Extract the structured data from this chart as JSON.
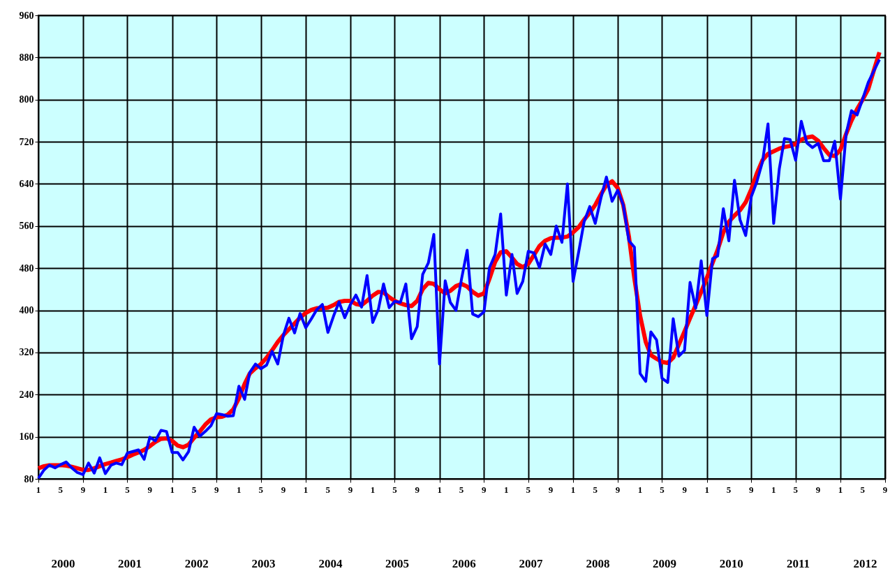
{
  "chart_data": {
    "type": "line",
    "marker": "none",
    "line_style": "solid",
    "grid": true,
    "x": [
      "2000-01",
      "2000-02",
      "2000-03",
      "2000-04",
      "2000-05",
      "2000-06",
      "2000-07",
      "2000-08",
      "2000-09",
      "2000-10",
      "2000-11",
      "2000-12",
      "2001-01",
      "2001-02",
      "2001-03",
      "2001-04",
      "2001-05",
      "2001-06",
      "2001-07",
      "2001-08",
      "2001-09",
      "2001-10",
      "2001-11",
      "2001-12",
      "2002-01",
      "2002-02",
      "2002-03",
      "2002-04",
      "2002-05",
      "2002-06",
      "2002-07",
      "2002-08",
      "2002-09",
      "2002-10",
      "2002-11",
      "2002-12",
      "2003-01",
      "2003-02",
      "2003-03",
      "2003-04",
      "2003-05",
      "2003-06",
      "2003-07",
      "2003-08",
      "2003-09",
      "2003-10",
      "2003-11",
      "2003-12",
      "2004-01",
      "2004-02",
      "2004-03",
      "2004-04",
      "2004-05",
      "2004-06",
      "2004-07",
      "2004-08",
      "2004-09",
      "2004-10",
      "2004-11",
      "2004-12",
      "2005-01",
      "2005-02",
      "2005-03",
      "2005-04",
      "2005-05",
      "2005-06",
      "2005-07",
      "2005-08",
      "2005-09",
      "2005-10",
      "2005-11",
      "2005-12",
      "2006-01",
      "2006-02",
      "2006-03",
      "2006-04",
      "2006-05",
      "2006-06",
      "2006-07",
      "2006-08",
      "2006-09",
      "2006-10",
      "2006-11",
      "2006-12",
      "2007-01",
      "2007-02",
      "2007-03",
      "2007-04",
      "2007-05",
      "2007-06",
      "2007-07",
      "2007-08",
      "2007-09",
      "2007-10",
      "2007-11",
      "2007-12",
      "2008-01",
      "2008-02",
      "2008-03",
      "2008-04",
      "2008-05",
      "2008-06",
      "2008-07",
      "2008-08",
      "2008-09",
      "2008-10",
      "2008-11",
      "2008-12",
      "2009-01",
      "2009-02",
      "2009-03",
      "2009-04",
      "2009-05",
      "2009-06",
      "2009-07",
      "2009-08",
      "2009-09",
      "2009-10",
      "2009-11",
      "2009-12",
      "2010-01",
      "2010-02",
      "2010-03",
      "2010-04",
      "2010-05",
      "2010-06",
      "2010-07",
      "2010-08",
      "2010-09",
      "2010-10",
      "2010-11",
      "2010-12",
      "2011-01",
      "2011-02",
      "2011-03",
      "2011-04",
      "2011-05",
      "2011-06",
      "2011-07",
      "2011-08",
      "2011-09",
      "2011-10",
      "2011-11",
      "2011-12",
      "2012-01",
      "2012-02",
      "2012-03",
      "2012-04",
      "2012-05",
      "2012-06",
      "2012-07",
      "2012-08"
    ],
    "series": [
      {
        "color": "#ff0000",
        "values": [
          100,
          104,
          106,
          106,
          106,
          105,
          103,
          100,
          97,
          97,
          100,
          104,
          108,
          111,
          114,
          117,
          121,
          126,
          130,
          135,
          142,
          150,
          156,
          157,
          152,
          143,
          140,
          145,
          158,
          170,
          183,
          193,
          197,
          198,
          202,
          212,
          233,
          260,
          280,
          290,
          298,
          310,
          324,
          340,
          353,
          364,
          375,
          386,
          395,
          401,
          404,
          404,
          405,
          410,
          416,
          418,
          418,
          412,
          410,
          418,
          428,
          435,
          434,
          425,
          418,
          413,
          410,
          408,
          418,
          440,
          452,
          450,
          440,
          432,
          437,
          446,
          450,
          445,
          435,
          428,
          432,
          460,
          492,
          510,
          512,
          500,
          488,
          482,
          488,
          505,
          522,
          532,
          537,
          538,
          538,
          540,
          548,
          558,
          572,
          585,
          600,
          620,
          638,
          645,
          632,
          600,
          540,
          460,
          390,
          340,
          315,
          308,
          302,
          300,
          310,
          335,
          360,
          385,
          410,
          435,
          462,
          490,
          515,
          548,
          568,
          580,
          590,
          605,
          630,
          660,
          685,
          697,
          702,
          707,
          710,
          712,
          716,
          724,
          728,
          730,
          722,
          708,
          695,
          693,
          705,
          735,
          760,
          782,
          800,
          820,
          855,
          890
        ]
      },
      {
        "color": "#0000ff",
        "values": [
          81,
          97,
          106,
          101,
          107,
          112,
          101,
          92,
          88,
          110,
          91,
          120,
          90,
          106,
          110,
          107,
          129,
          132,
          135,
          117,
          159,
          152,
          172,
          170,
          130,
          130,
          116,
          132,
          178,
          161,
          170,
          181,
          204,
          202,
          199,
          200,
          256,
          231,
          282,
          298,
          289,
          296,
          322,
          298,
          353,
          385,
          357,
          394,
          367,
          384,
          401,
          411,
          358,
          389,
          416,
          386,
          411,
          429,
          406,
          466,
          377,
          402,
          450,
          405,
          417,
          415,
          450,
          346,
          369,
          468,
          490,
          544,
          298,
          456,
          415,
          400,
          459,
          514,
          393,
          388,
          397,
          481,
          506,
          583,
          429,
          506,
          432,
          455,
          512,
          509,
          481,
          526,
          506,
          560,
          529,
          640,
          455,
          512,
          568,
          597,
          565,
          613,
          653,
          607,
          628,
          600,
          532,
          520,
          280,
          265,
          359,
          344,
          271,
          263,
          384,
          313,
          324,
          453,
          404,
          494,
          390,
          498,
          503,
          593,
          532,
          647,
          572,
          542,
          616,
          644,
          682,
          754,
          565,
          669,
          726,
          724,
          685,
          759,
          718,
          709,
          717,
          684,
          684,
          721,
          611,
          735,
          779,
          771,
          801,
          833,
          854,
          876
        ]
      }
    ],
    "xlim": [
      "2000-01",
      "2012-09"
    ],
    "xticks": [
      {
        "value": "2000-01",
        "label": "1"
      },
      {
        "value": "2000-05",
        "label": "5"
      },
      {
        "value": "2000-09",
        "label": "9"
      },
      {
        "value": "2001-01",
        "label": "1"
      },
      {
        "value": "2001-05",
        "label": "5"
      },
      {
        "value": "2001-09",
        "label": "9"
      },
      {
        "value": "2002-01",
        "label": "1"
      },
      {
        "value": "2002-05",
        "label": "5"
      },
      {
        "value": "2002-09",
        "label": "9"
      },
      {
        "value": "2003-01",
        "label": "1"
      },
      {
        "value": "2003-05",
        "label": "5"
      },
      {
        "value": "2003-09",
        "label": "9"
      },
      {
        "value": "2004-01",
        "label": "1"
      },
      {
        "value": "2004-05",
        "label": "5"
      },
      {
        "value": "2004-09",
        "label": "9"
      },
      {
        "value": "2005-01",
        "label": "1"
      },
      {
        "value": "2005-05",
        "label": "5"
      },
      {
        "value": "2005-09",
        "label": "9"
      },
      {
        "value": "2006-01",
        "label": "1"
      },
      {
        "value": "2006-05",
        "label": "5"
      },
      {
        "value": "2006-09",
        "label": "9"
      },
      {
        "value": "2007-01",
        "label": "1"
      },
      {
        "value": "2007-05",
        "label": "5"
      },
      {
        "value": "2007-09",
        "label": "9"
      },
      {
        "value": "2008-01",
        "label": "1"
      },
      {
        "value": "2008-05",
        "label": "5"
      },
      {
        "value": "2008-09",
        "label": "9"
      },
      {
        "value": "2009-01",
        "label": "1"
      },
      {
        "value": "2009-05",
        "label": "5"
      },
      {
        "value": "2009-09",
        "label": "9"
      },
      {
        "value": "2010-01",
        "label": "1"
      },
      {
        "value": "2010-05",
        "label": "5"
      },
      {
        "value": "2010-09",
        "label": "9"
      },
      {
        "value": "2011-01",
        "label": "1"
      },
      {
        "value": "2011-05",
        "label": "5"
      },
      {
        "value": "2011-09",
        "label": "9"
      },
      {
        "value": "2012-01",
        "label": "1"
      },
      {
        "value": "2012-05",
        "label": "5"
      },
      {
        "value": "2012-09",
        "label": "9"
      }
    ],
    "ylim": [
      80,
      960
    ],
    "yticks": [
      80,
      160,
      240,
      320,
      400,
      480,
      560,
      640,
      720,
      800,
      880,
      960
    ],
    "annotations": [
      "2000",
      "2001",
      "2002",
      "2003",
      "2004",
      "2005",
      "2006",
      "2007",
      "2008",
      "2009",
      "2010",
      "2011",
      "2012"
    ]
  }
}
